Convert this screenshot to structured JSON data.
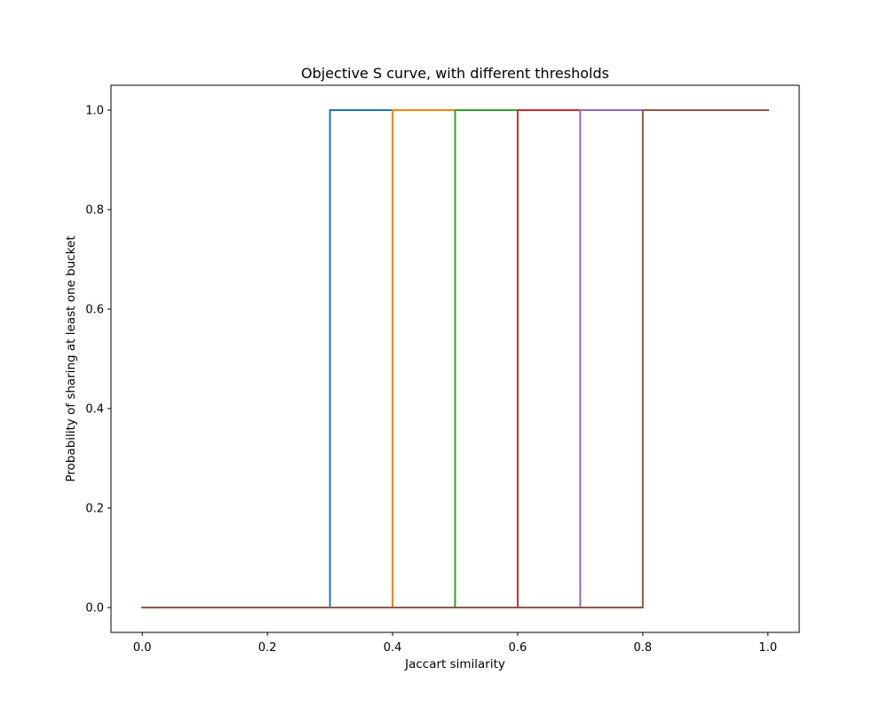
{
  "chart_data": {
    "type": "line",
    "title": "Objective S curve, with different thresholds",
    "xlabel": "Jaccart similarity",
    "ylabel": "Probability of sharing at least one bucket",
    "xlim": [
      -0.05,
      1.05
    ],
    "ylim": [
      -0.05,
      1.05
    ],
    "xticks": [
      0.0,
      0.2,
      0.4,
      0.6,
      0.8,
      1.0
    ],
    "xtick_labels": [
      "0.0",
      "0.2",
      "0.4",
      "0.6",
      "0.8",
      "1.0"
    ],
    "yticks": [
      0.0,
      0.2,
      0.4,
      0.6,
      0.8,
      1.0
    ],
    "ytick_labels": [
      "0.0",
      "0.2",
      "0.4",
      "0.6",
      "0.8",
      "1.0"
    ],
    "grid": false,
    "legend": false,
    "series": [
      {
        "color": "#1f77b4",
        "x": [
          0.0,
          0.3,
          0.3,
          1.0
        ],
        "y": [
          0,
          0,
          1,
          1
        ]
      },
      {
        "color": "#ff7f0e",
        "x": [
          0.0,
          0.4,
          0.4,
          1.0
        ],
        "y": [
          0,
          0,
          1,
          1
        ]
      },
      {
        "color": "#2ca02c",
        "x": [
          0.0,
          0.5,
          0.5,
          1.0
        ],
        "y": [
          0,
          0,
          1,
          1
        ]
      },
      {
        "color": "#d62728",
        "x": [
          0.0,
          0.6,
          0.6,
          1.0
        ],
        "y": [
          0,
          0,
          1,
          1
        ]
      },
      {
        "color": "#9467bd",
        "x": [
          0.0,
          0.7,
          0.7,
          1.0
        ],
        "y": [
          0,
          0,
          1,
          1
        ]
      },
      {
        "color": "#8c564b",
        "x": [
          0.0,
          0.8,
          0.8,
          1.0
        ],
        "y": [
          0,
          0,
          1,
          1
        ]
      }
    ]
  }
}
